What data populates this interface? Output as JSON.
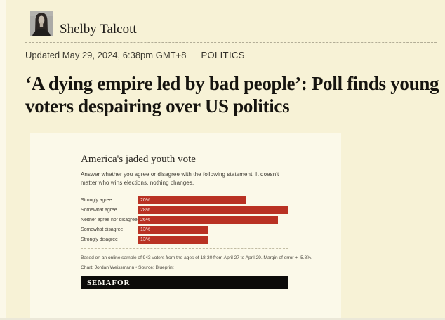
{
  "byline": {
    "name": "Shelby Talcott"
  },
  "meta": {
    "updated": "Updated May 29, 2024, 6:38pm GMT+8",
    "category": "POLITICS"
  },
  "headline": "‘A dying empire led by bad people’: Poll finds young voters despairing over US politics",
  "chart": {
    "title": "America's jaded youth vote",
    "subtitle": "Answer whether you agree or disagree with the following statement: It doesn't matter who wins elections, nothing changes.",
    "footnote": "Based on an online sample of 943 voters from the ages of 18-30 from April 27 to April 29. Margin of error +- 5.8%.",
    "credit": "Chart: Jordan Weissmann • Source: Blueprint",
    "logo": "SEMAFOR",
    "colors": {
      "bar": "#b93223",
      "logo_bg": "#0c0b09",
      "page_bg": "#f7f2d6",
      "card_bg": "#fbf9e9"
    }
  },
  "chart_data": {
    "type": "bar",
    "orientation": "horizontal",
    "title": "America's jaded youth vote",
    "categories": [
      "Strongly agree",
      "Somewhat agree",
      "Neither agree nor disagree",
      "Somewhat disagree",
      "Strongly disagree"
    ],
    "values": [
      20,
      28,
      26,
      13,
      13
    ],
    "value_labels": [
      "20%",
      "28%",
      "26%",
      "13%",
      "13%"
    ],
    "xlabel": "",
    "ylabel": "",
    "xlim": [
      0,
      28
    ],
    "grid": false,
    "legend": false
  }
}
